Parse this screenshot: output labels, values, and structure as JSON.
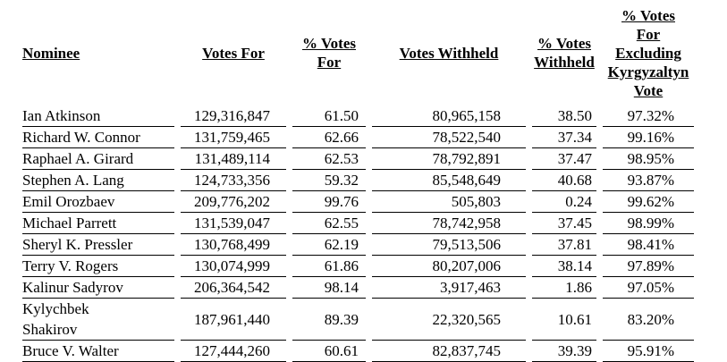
{
  "table": {
    "title": "director-election-voting-results",
    "columns": [
      {
        "label": "Nominee"
      },
      {
        "label": "Votes For"
      },
      {
        "label": "% Votes\nFor"
      },
      {
        "label": "Votes Withheld"
      },
      {
        "label": "% Votes\nWithheld"
      },
      {
        "label": "% Votes\nFor\nExcluding\nKyrgyzaltyn\nVote"
      }
    ],
    "rows": [
      [
        "Ian Atkinson",
        "129,316,847",
        "61.50",
        "80,965,158",
        "38.50",
        "97.32%"
      ],
      [
        "Richard W. Connor",
        "131,759,465",
        "62.66",
        "78,522,540",
        "37.34",
        "99.16%"
      ],
      [
        "Raphael A. Girard",
        "131,489,114",
        "62.53",
        "78,792,891",
        "37.47",
        "98.95%"
      ],
      [
        "Stephen A. Lang",
        "124,733,356",
        "59.32",
        "85,548,649",
        "40.68",
        "93.87%"
      ],
      [
        "Emil Orozbaev",
        "209,776,202",
        "99.76",
        "505,803",
        "0.24",
        "99.62%"
      ],
      [
        "Michael Parrett",
        "131,539,047",
        "62.55",
        "78,742,958",
        "37.45",
        "98.99%"
      ],
      [
        "Sheryl K. Pressler",
        "130,768,499",
        "62.19",
        "79,513,506",
        "37.81",
        "98.41%"
      ],
      [
        "Terry V. Rogers",
        "130,074,999",
        "61.86",
        "80,207,006",
        "38.14",
        "97.89%"
      ],
      [
        "Kalinur Sadyrov",
        "206,364,542",
        "98.14",
        "3,917,463",
        "1.86",
        "97.05%"
      ],
      [
        "Kylychbek\nShakirov",
        "187,961,440",
        "89.39",
        "22,320,565",
        "10.61",
        "83.20%"
      ],
      [
        "Bruce V. Walter",
        "127,444,260",
        "60.61",
        "82,837,745",
        "39.39",
        "95.91%"
      ]
    ],
    "text_color": "#000000",
    "background_color": "#ffffff"
  }
}
